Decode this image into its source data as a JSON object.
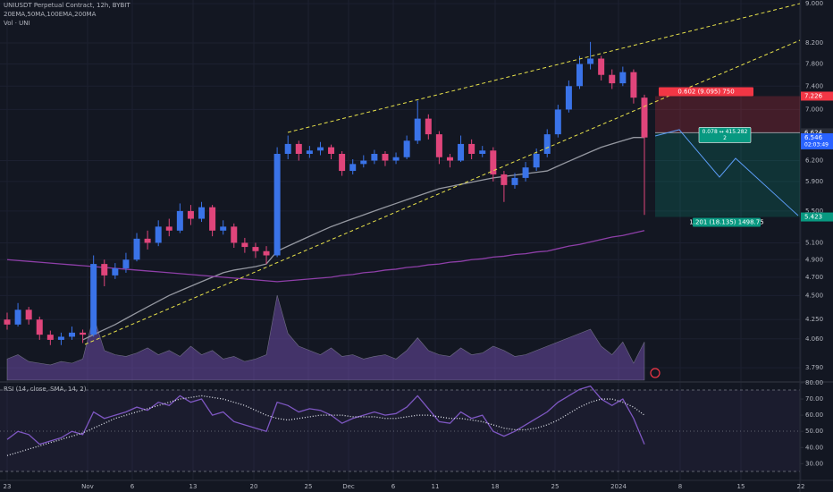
{
  "chart_data": {
    "type": "candlestick",
    "title": "UNIUSDT Perpetual Contract, 12h, BYBIT",
    "indicators": "20EMA,50MA,100EMA,200MA",
    "volume_label": "Vol · UNI",
    "rsi_label": "RSI (14, close, SMA, 14, 2)",
    "log_scale": true,
    "grid": true,
    "up_color": "#3a73e8",
    "down_color": "#e0457b",
    "ylim": [
      3.68,
      9.08
    ],
    "yticks": [
      {
        "value": 9.0,
        "label": "9.000"
      },
      {
        "value": 8.2,
        "label": "8.200"
      },
      {
        "value": 7.8,
        "label": "7.800"
      },
      {
        "value": 7.4,
        "label": "7.400"
      },
      {
        "value": 7.0,
        "label": "7.000"
      },
      {
        "value": 6.2,
        "label": "6.200"
      },
      {
        "value": 5.9,
        "label": "5.900"
      },
      {
        "value": 5.5,
        "label": "5.500"
      },
      {
        "value": 5.1,
        "label": "5.100"
      },
      {
        "value": 4.9,
        "label": "4.900"
      },
      {
        "value": 4.7,
        "label": "4.700"
      },
      {
        "value": 4.5,
        "label": "4.500"
      },
      {
        "value": 4.25,
        "label": "4.250"
      },
      {
        "value": 4.06,
        "label": "4.060"
      },
      {
        "value": 3.79,
        "label": "3.790"
      }
    ],
    "x_labels": [
      "23",
      "Nov",
      "6",
      "13",
      "20",
      "25",
      "Dec",
      "6",
      "11",
      "18",
      "25",
      "2024",
      "8",
      "15",
      "22"
    ],
    "candles": [
      [
        4.25,
        4.32,
        4.15,
        4.2
      ],
      [
        4.2,
        4.42,
        4.18,
        4.35
      ],
      [
        4.35,
        4.38,
        4.2,
        4.25
      ],
      [
        4.25,
        4.28,
        4.05,
        4.1
      ],
      [
        4.1,
        4.14,
        4.0,
        4.05
      ],
      [
        4.05,
        4.12,
        4.0,
        4.08
      ],
      [
        4.08,
        4.18,
        4.05,
        4.12
      ],
      [
        4.12,
        4.15,
        4.02,
        4.1
      ],
      [
        4.1,
        4.95,
        4.08,
        4.85
      ],
      [
        4.85,
        4.9,
        4.6,
        4.72
      ],
      [
        4.72,
        4.86,
        4.68,
        4.8
      ],
      [
        4.8,
        4.98,
        4.75,
        4.9
      ],
      [
        4.9,
        5.22,
        4.88,
        5.15
      ],
      [
        5.15,
        5.25,
        5.02,
        5.1
      ],
      [
        5.1,
        5.38,
        5.06,
        5.3
      ],
      [
        5.3,
        5.4,
        5.18,
        5.25
      ],
      [
        5.25,
        5.6,
        5.22,
        5.5
      ],
      [
        5.5,
        5.58,
        5.32,
        5.4
      ],
      [
        5.4,
        5.62,
        5.36,
        5.55
      ],
      [
        5.55,
        5.58,
        5.18,
        5.25
      ],
      [
        5.25,
        5.38,
        5.2,
        5.3
      ],
      [
        5.3,
        5.34,
        5.04,
        5.1
      ],
      [
        5.1,
        5.16,
        4.98,
        5.05
      ],
      [
        5.05,
        5.1,
        4.92,
        5.0
      ],
      [
        5.0,
        5.06,
        4.85,
        4.95
      ],
      [
        4.95,
        6.4,
        4.93,
        6.3
      ],
      [
        6.3,
        6.58,
        6.22,
        6.45
      ],
      [
        6.45,
        6.5,
        6.2,
        6.3
      ],
      [
        6.3,
        6.42,
        6.24,
        6.35
      ],
      [
        6.35,
        6.48,
        6.28,
        6.4
      ],
      [
        6.4,
        6.44,
        6.22,
        6.3
      ],
      [
        6.3,
        6.34,
        5.98,
        6.05
      ],
      [
        6.05,
        6.22,
        6.0,
        6.15
      ],
      [
        6.15,
        6.28,
        6.1,
        6.2
      ],
      [
        6.2,
        6.36,
        6.15,
        6.3
      ],
      [
        6.3,
        6.34,
        6.12,
        6.2
      ],
      [
        6.2,
        6.32,
        6.15,
        6.25
      ],
      [
        6.25,
        6.58,
        6.22,
        6.5
      ],
      [
        6.5,
        7.15,
        6.45,
        6.85
      ],
      [
        6.85,
        6.92,
        6.52,
        6.6
      ],
      [
        6.6,
        6.65,
        6.15,
        6.25
      ],
      [
        6.25,
        6.3,
        6.1,
        6.2
      ],
      [
        6.2,
        6.58,
        6.18,
        6.45
      ],
      [
        6.45,
        6.52,
        6.22,
        6.3
      ],
      [
        6.3,
        6.42,
        6.25,
        6.35
      ],
      [
        6.35,
        6.4,
        5.9,
        6.0
      ],
      [
        6.0,
        6.05,
        5.62,
        5.85
      ],
      [
        5.85,
        6.02,
        5.8,
        5.95
      ],
      [
        5.95,
        6.18,
        5.9,
        6.1
      ],
      [
        6.1,
        6.38,
        6.05,
        6.3
      ],
      [
        6.3,
        6.68,
        6.25,
        6.6
      ],
      [
        6.6,
        7.08,
        6.55,
        7.0
      ],
      [
        7.0,
        7.5,
        6.95,
        7.4
      ],
      [
        7.4,
        7.95,
        7.35,
        7.8
      ],
      [
        7.8,
        8.22,
        7.7,
        7.9
      ],
      [
        7.9,
        7.95,
        7.5,
        7.6
      ],
      [
        7.6,
        7.7,
        7.35,
        7.45
      ],
      [
        7.45,
        7.75,
        7.4,
        7.65
      ],
      [
        7.65,
        7.7,
        7.1,
        7.2
      ],
      [
        7.2,
        7.25,
        5.45,
        6.55
      ]
    ],
    "series": [
      {
        "color": "#9598a1",
        "values": [
          null,
          null,
          null,
          null,
          null,
          null,
          null,
          4.05,
          4.1,
          4.15,
          4.2,
          4.26,
          4.32,
          4.38,
          4.44,
          4.5,
          4.55,
          4.6,
          4.65,
          4.7,
          4.75,
          4.78,
          4.8,
          4.82,
          4.85,
          5.0,
          5.06,
          5.12,
          5.18,
          5.24,
          5.3,
          5.35,
          5.4,
          5.45,
          5.5,
          5.55,
          5.6,
          5.65,
          5.7,
          5.75,
          5.8,
          5.83,
          5.86,
          5.89,
          5.92,
          5.95,
          5.97,
          5.99,
          6.01,
          6.03,
          6.05,
          6.12,
          6.19,
          6.26,
          6.33,
          6.4,
          6.45,
          6.5,
          6.55,
          6.55
        ]
      },
      {
        "color": "#8e3fa8",
        "values": [
          4.9,
          4.89,
          4.88,
          4.87,
          4.86,
          4.85,
          4.84,
          4.83,
          4.82,
          4.81,
          4.8,
          4.79,
          4.78,
          4.77,
          4.76,
          4.75,
          4.74,
          4.73,
          4.72,
          4.71,
          4.7,
          4.69,
          4.68,
          4.67,
          4.66,
          4.65,
          4.66,
          4.67,
          4.68,
          4.69,
          4.7,
          4.72,
          4.73,
          4.75,
          4.76,
          4.78,
          4.79,
          4.81,
          4.82,
          4.84,
          4.85,
          4.87,
          4.88,
          4.9,
          4.91,
          4.93,
          4.94,
          4.96,
          4.97,
          4.99,
          5.0,
          5.03,
          5.06,
          5.08,
          5.11,
          5.14,
          5.17,
          5.19,
          5.22,
          5.25
        ]
      }
    ],
    "volume": [
      25,
      30,
      22,
      20,
      18,
      22,
      20,
      25,
      75,
      35,
      30,
      28,
      32,
      38,
      30,
      35,
      28,
      40,
      30,
      35,
      25,
      28,
      22,
      25,
      30,
      100,
      55,
      40,
      35,
      30,
      38,
      28,
      30,
      25,
      28,
      30,
      25,
      35,
      50,
      35,
      30,
      28,
      38,
      30,
      32,
      40,
      35,
      28,
      30,
      35,
      40,
      45,
      50,
      55,
      60,
      40,
      30,
      45,
      20,
      45
    ],
    "volume_color": "#7e57c2",
    "price_markers": [
      7.226,
      6.624,
      6.546,
      5.423
    ],
    "price_marker_colors": [
      "#f23645",
      "#2a2e39",
      "#2962ff",
      "#089981"
    ],
    "countdown": "02:03:49",
    "position": {
      "stop_label": "0.602 (9.095) 750",
      "mid_label": "0.078 ↔ 415.282",
      "mid_sub": "2",
      "target_label": "1.201 (18.135) 1498.75"
    },
    "rsi": {
      "ylim": [
        18,
        80
      ],
      "yticks": [
        {
          "value": 80,
          "label": "80.00"
        },
        {
          "value": 70,
          "label": "70.00"
        },
        {
          "value": 60,
          "label": "60.00"
        },
        {
          "value": 50,
          "label": "50.00"
        },
        {
          "value": 40,
          "label": "40.00"
        },
        {
          "value": 30,
          "label": "30.00"
        }
      ],
      "line_color": "#7e57c2",
      "sma_color": "#e0e3eb",
      "values": [
        45,
        50,
        48,
        42,
        44,
        46,
        50,
        48,
        62,
        58,
        60,
        62,
        65,
        63,
        68,
        66,
        72,
        68,
        70,
        60,
        62,
        56,
        54,
        52,
        50,
        68,
        66,
        62,
        64,
        63,
        60,
        55,
        58,
        60,
        62,
        60,
        61,
        65,
        72,
        64,
        56,
        55,
        62,
        58,
        60,
        50,
        47,
        50,
        54,
        58,
        62,
        68,
        72,
        76,
        78,
        70,
        66,
        70,
        58,
        42
      ],
      "sma": [
        35,
        37,
        39,
        41,
        43,
        45,
        47,
        49,
        52,
        55,
        58,
        60,
        62,
        64,
        66,
        68,
        70,
        71,
        72,
        71,
        70,
        68,
        66,
        63,
        60,
        58,
        57,
        58,
        59,
        60,
        60,
        60,
        59,
        59,
        59,
        58,
        58,
        59,
        60,
        60,
        59,
        58,
        58,
        57,
        56,
        54,
        52,
        51,
        51,
        52,
        54,
        57,
        61,
        65,
        68,
        70,
        70,
        68,
        65,
        60
      ]
    }
  }
}
